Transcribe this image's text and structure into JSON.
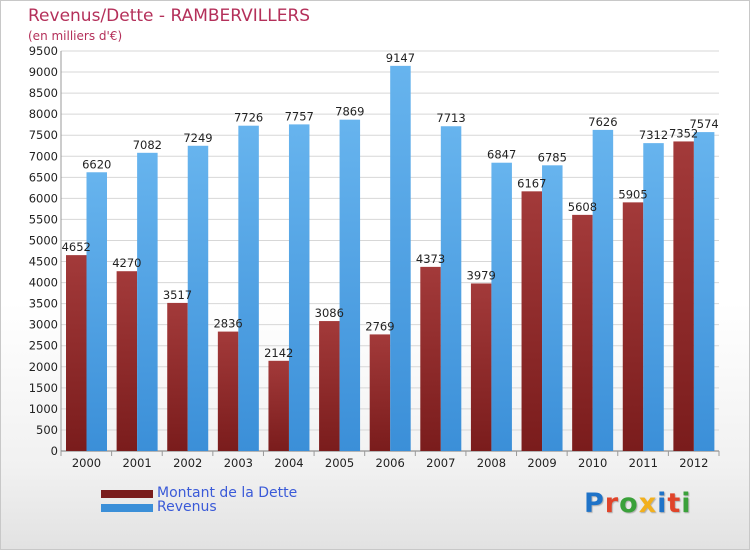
{
  "title": "Revenus/Dette - RAMBERVILLERS",
  "subtitle": "(en milliers d'€)",
  "colors": {
    "debt": "#7a1c1c",
    "debt_light": "#a33a3a",
    "revenue": "#3b8fd8",
    "revenue_light": "#67b4ee",
    "title": "#b4305a",
    "legend_text": "#3a5ad8"
  },
  "legend": {
    "debt_label": "Montant de la Dette",
    "revenue_label": "Revenus"
  },
  "logo": {
    "letters": [
      "P",
      "r",
      "o",
      "x",
      "i",
      "t",
      "i"
    ],
    "colors": [
      "#1f73c8",
      "#e0442a",
      "#3aa13a",
      "#f2b01e",
      "#1f73c8",
      "#e0442a",
      "#3aa13a"
    ]
  },
  "chart_data": {
    "type": "bar",
    "categories": [
      "2000",
      "2001",
      "2002",
      "2003",
      "2004",
      "2005",
      "2006",
      "2007",
      "2008",
      "2009",
      "2010",
      "2011",
      "2012"
    ],
    "series": [
      {
        "name": "Montant de la Dette",
        "values": [
          4652,
          4270,
          3517,
          2836,
          2142,
          3086,
          2769,
          4373,
          3979,
          6167,
          5608,
          5905,
          7352
        ]
      },
      {
        "name": "Revenus",
        "values": [
          6620,
          7082,
          7249,
          7726,
          7757,
          7869,
          9147,
          7713,
          6847,
          6785,
          7626,
          7312,
          7574
        ]
      }
    ],
    "ylim": [
      0,
      9500
    ],
    "yticks": [
      0,
      500,
      1000,
      1500,
      2000,
      2500,
      3000,
      3500,
      4000,
      4500,
      5000,
      5500,
      6000,
      6500,
      7000,
      7500,
      8000,
      8500,
      9000,
      9500
    ],
    "grid": true,
    "legend_position": "bottom-left",
    "xlabel": "",
    "ylabel": ""
  }
}
